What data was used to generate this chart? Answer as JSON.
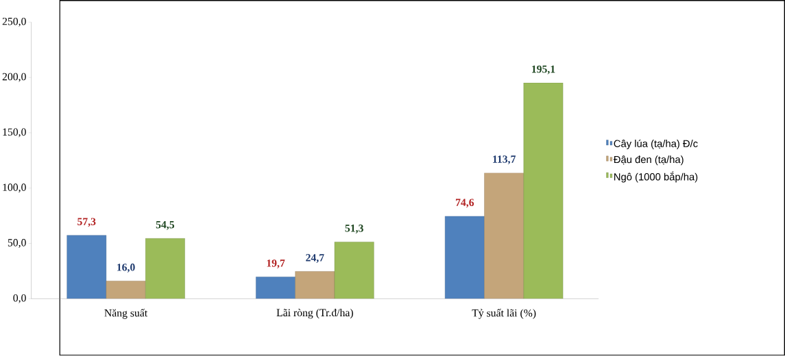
{
  "chart_data": {
    "type": "bar",
    "categories": [
      "Năng suất",
      "Lãi ròng (Tr.đ/ha)",
      "Tỷ suất lãi (%)"
    ],
    "series": [
      {
        "name": "Cây lúa (tạ/ha) Đ/c",
        "color": "#4f81bd",
        "values": [
          57.3,
          19.7,
          74.6
        ],
        "value_labels": [
          "57,3",
          "19,7",
          "74,6"
        ]
      },
      {
        "name": "Đậu đen (tạ/ha)",
        "color": "#c4a57a",
        "values": [
          16.0,
          24.7,
          113.7
        ],
        "value_labels": [
          "16,0",
          "24,7",
          "113,7"
        ]
      },
      {
        "name": "Ngô (1000 bắp/ha)",
        "color": "#9bbb59",
        "values": [
          54.5,
          51.3,
          195.1
        ],
        "value_labels": [
          "54,5",
          "51,3",
          "195,1"
        ]
      }
    ],
    "ylim": [
      0,
      250
    ],
    "yticks": [
      {
        "value": 0,
        "label": "0,0"
      },
      {
        "value": 50,
        "label": "50,0"
      },
      {
        "value": 100,
        "label": "100,0"
      },
      {
        "value": 150,
        "label": "150,0"
      },
      {
        "value": 200,
        "label": "200,0"
      },
      {
        "value": 250,
        "label": "250,0"
      }
    ],
    "grid": false,
    "legend": "right"
  }
}
